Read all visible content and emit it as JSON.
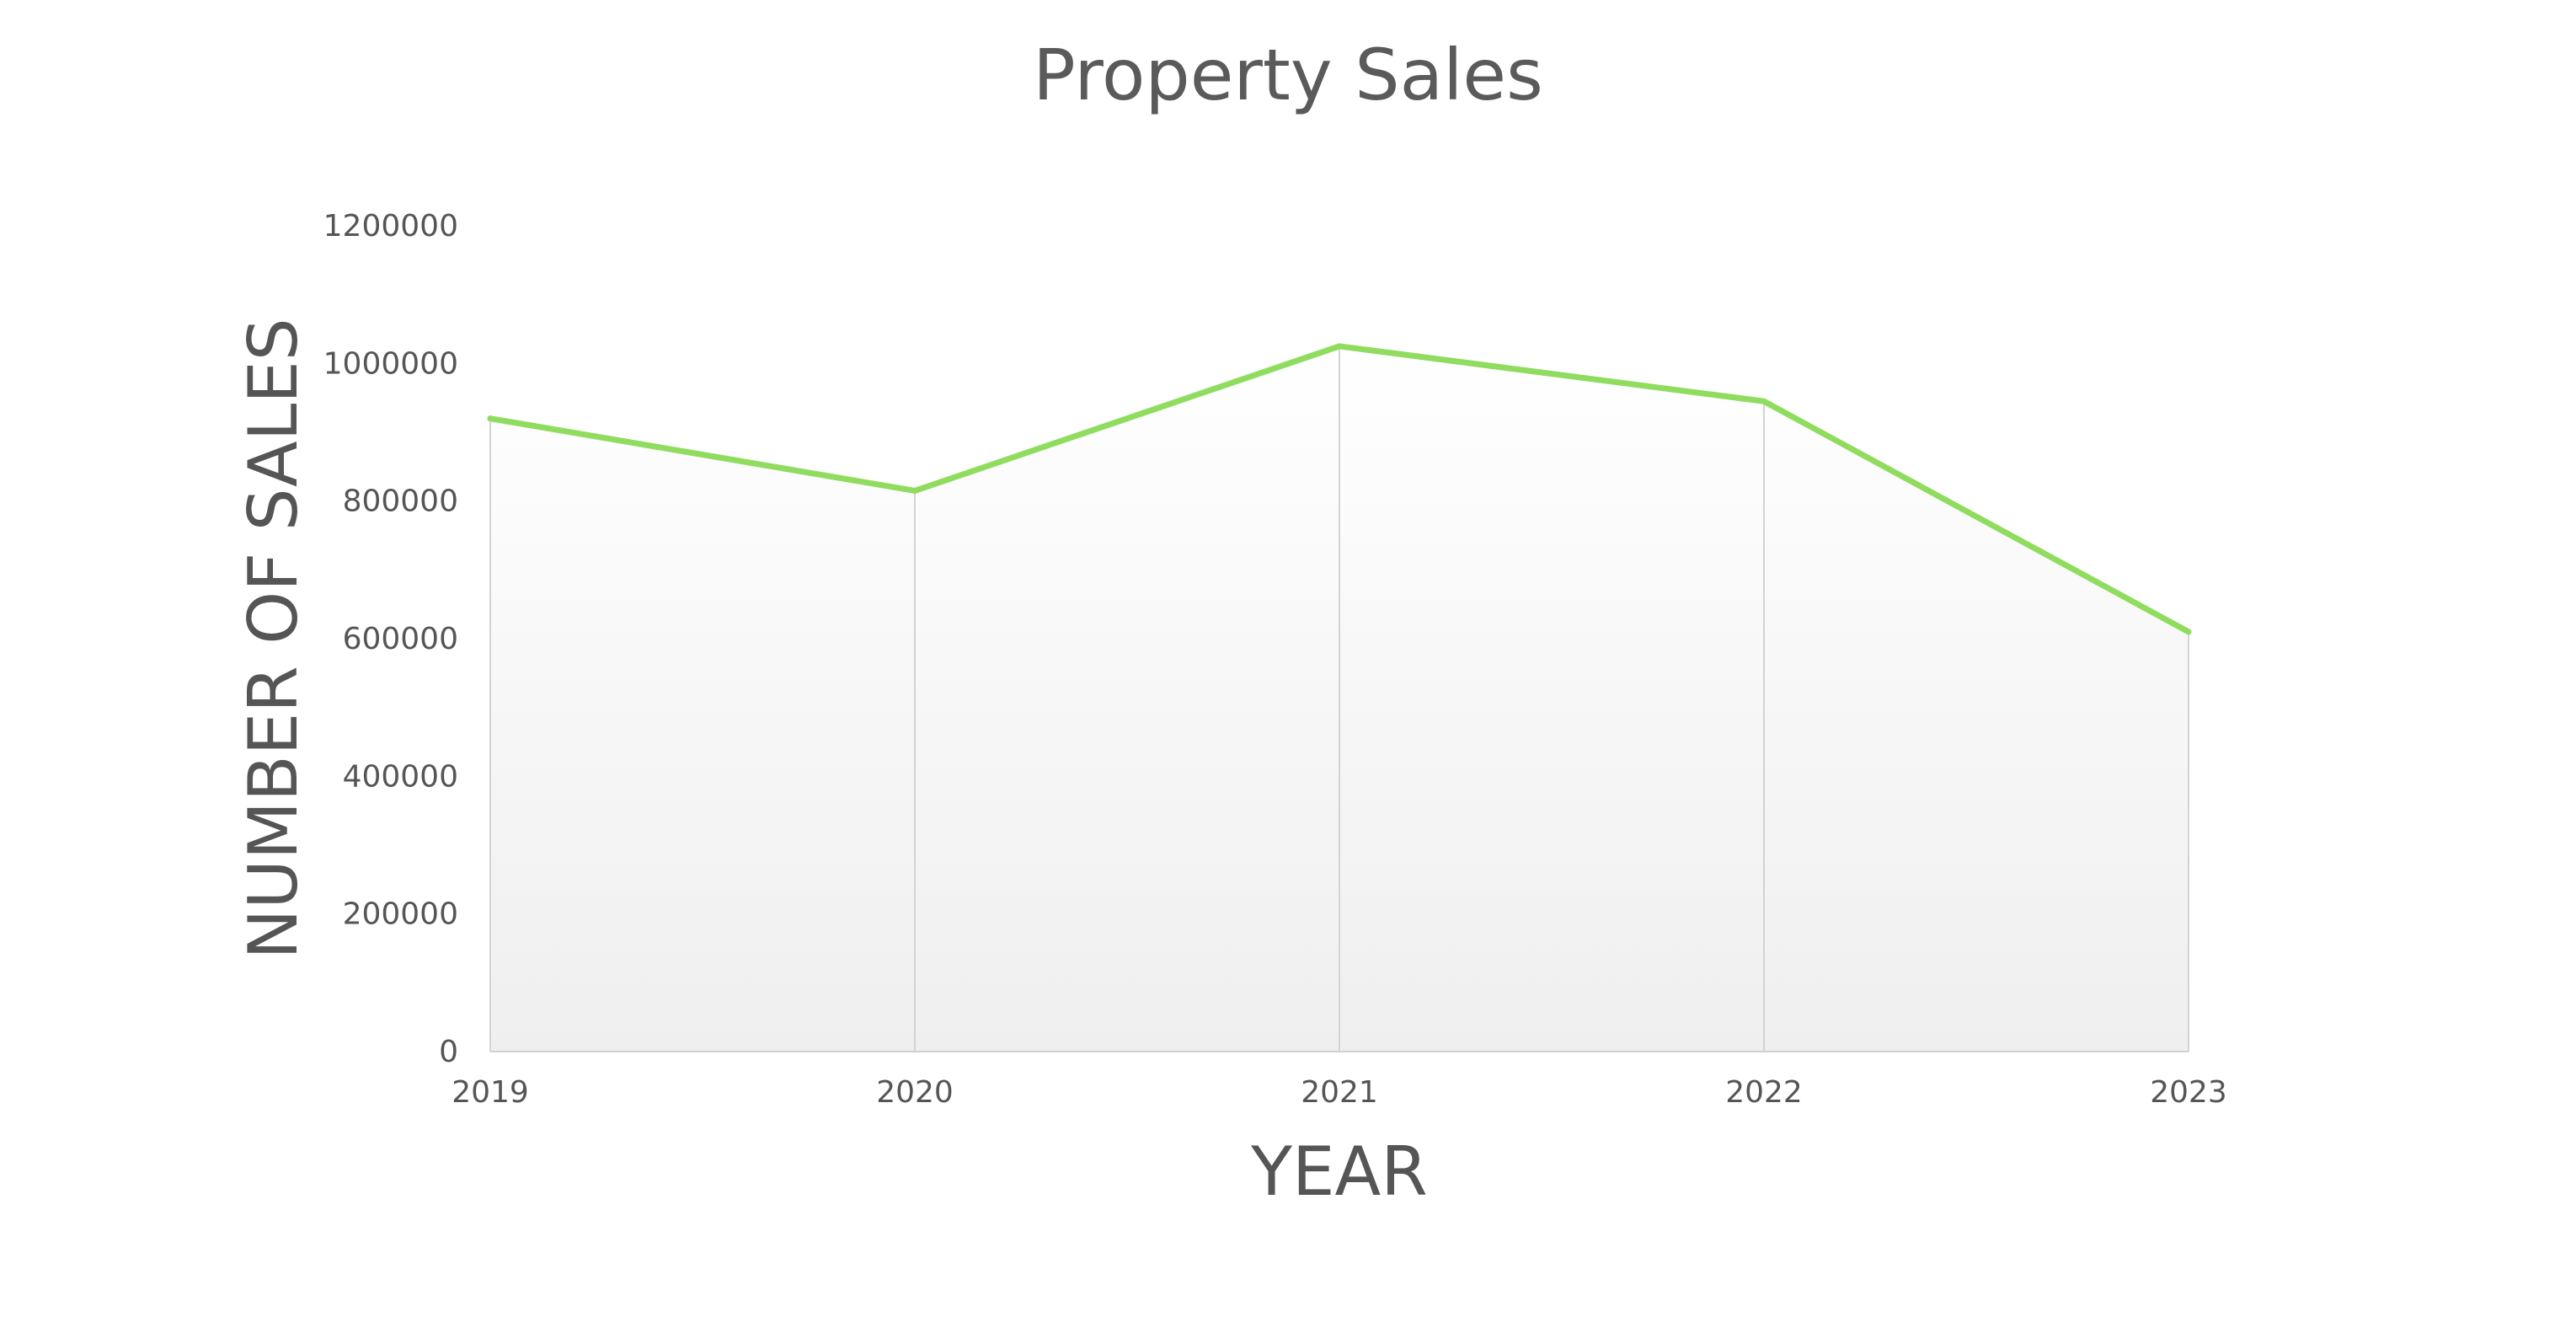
{
  "chart_data": {
    "type": "area",
    "title": "Property Sales",
    "xlabel": "YEAR",
    "ylabel": "NUMBER OF SALES",
    "x": [
      "2019",
      "2020",
      "2021",
      "2022",
      "2023"
    ],
    "series": [
      {
        "values": [
          920000,
          815000,
          1025000,
          945000,
          610000
        ]
      }
    ],
    "ylim": [
      0,
      1200000
    ],
    "yticks": [
      "0",
      "200000",
      "400000",
      "600000",
      "800000",
      "1000000",
      "1200000"
    ],
    "grid": false,
    "legend": "none",
    "colors": {
      "line": "#8fdc5f",
      "fill_top": "#ffffff",
      "fill_bottom": "#efefef"
    }
  }
}
